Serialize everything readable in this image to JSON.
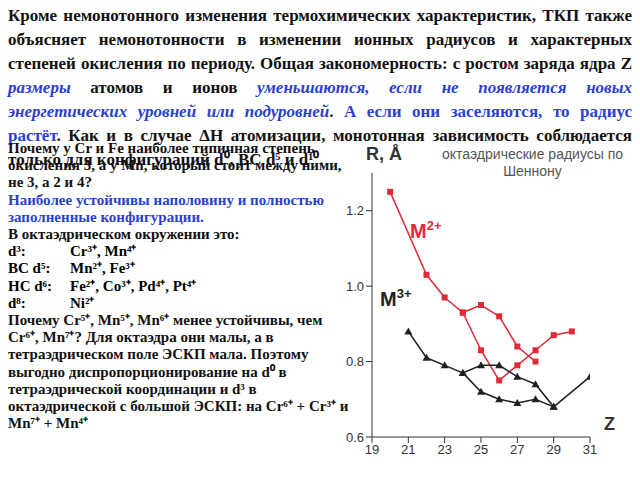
{
  "intro": {
    "spans": [
      {
        "text": "Кроме немонотонного изменения термохимических характеристик, ТКП также объясняет немонотонности в изменении ионных радиусов и характерных степеней окисления по периоду. Общая закономерность: с ростом заряда ядра Z "
      },
      {
        "text": "размеры",
        "color": "#2b3fd0",
        "italic": true
      },
      {
        "text": " атомов и ионов "
      },
      {
        "text": "уменьшаются, если не появляется новых энергетических уровней или подуровней",
        "color": "#2b3fd0",
        "italic": true
      },
      {
        "text": ". "
      },
      {
        "text": "А если они заселяются, то радиус растёт",
        "color": "#2b3fd0"
      },
      {
        "text": ". Как и в случае ΔH атомизации, монотонная зависимость соблюдается только для конфигураций d⁰, ВС d⁵ и d¹⁰."
      }
    ]
  },
  "left": {
    "question": [
      {
        "text": "Почему у Cr и Fe наиболее типичная степень окисления 3, а у Mn, который стоит между ними, не 3, а 2 и 4?"
      }
    ],
    "answer": [
      {
        "text": "Наиболее устойчивы наполовину и полностью заполненные конфигурации.",
        "color": "#2b3fd0"
      }
    ],
    "list_intro": [
      {
        "text": "В октаэдрическом окружении это:"
      }
    ],
    "configs": [
      {
        "label": "d³:",
        "ions": "Cr³⁺, Mn⁴⁺"
      },
      {
        "label": "ВС d⁵:",
        "ions": "Mn²⁺, Fe³⁺"
      },
      {
        "label": "НС d⁶:",
        "ions": "Fe²⁺, Co³⁺, Pd⁴⁺, Pt⁴⁺"
      },
      {
        "label": "d⁸:",
        "ions": "Ni²⁺"
      }
    ],
    "closing": [
      {
        "text": "Почему Cr⁵⁺, Mn⁵⁺, Mn⁶⁺ менее устойчивы, чем Cr⁶⁺, Mn⁷⁺? Для октаэдра они малы, а в тетраэдрическом поле ЭСКП мала. Поэтому выгодно диспропорционирование на d⁰ в тетраэдрической координации и d³ в октаэдрической с большой ЭСКП: на Cr⁶⁺ + Cr³⁺ и Mn⁷⁺ + Mn⁴⁺"
      }
    ]
  },
  "chart_data": {
    "type": "line",
    "title": "октаэдрические радиусы по Шеннону",
    "x_label": "Z",
    "y_label": "R, Å",
    "xlim": [
      19,
      31
    ],
    "xticks": [
      19,
      21,
      23,
      25,
      27,
      29,
      31
    ],
    "ylim": [
      0.6,
      1.3
    ],
    "yticks": [
      0.6,
      0.8,
      {
        "value": 1,
        "label": "1.0"
      },
      1.2
    ],
    "series": [
      {
        "name": "M2+",
        "color": "#e02a36",
        "marker": "square",
        "branches": [
          {
            "x": [
              20,
              22,
              23,
              24,
              25,
              26,
              27,
              28
            ],
            "values": [
              1.25,
              1.03,
              0.97,
              0.93,
              0.95,
              0.92,
              0.84,
              0.8
            ]
          },
          {
            "x": [
              24,
              25,
              26,
              27,
              28,
              29,
              30
            ],
            "values": [
              0.93,
              0.83,
              0.75,
              0.79,
              0.83,
              0.87,
              0.88
            ]
          }
        ]
      },
      {
        "name": "M3+",
        "color": "#222222",
        "marker": "triangle",
        "branches": [
          {
            "x": [
              21,
              22,
              23,
              24,
              25,
              26,
              27,
              28,
              29,
              31
            ],
            "values": [
              0.88,
              0.81,
              0.79,
              0.77,
              0.79,
              0.79,
              0.76,
              0.74,
              0.68,
              0.76
            ]
          },
          {
            "x": [
              24,
              25,
              26,
              27,
              28,
              29
            ],
            "values": [
              0.77,
              0.72,
              0.7,
              0.69,
              0.7,
              0.68
            ]
          }
        ]
      }
    ]
  }
}
